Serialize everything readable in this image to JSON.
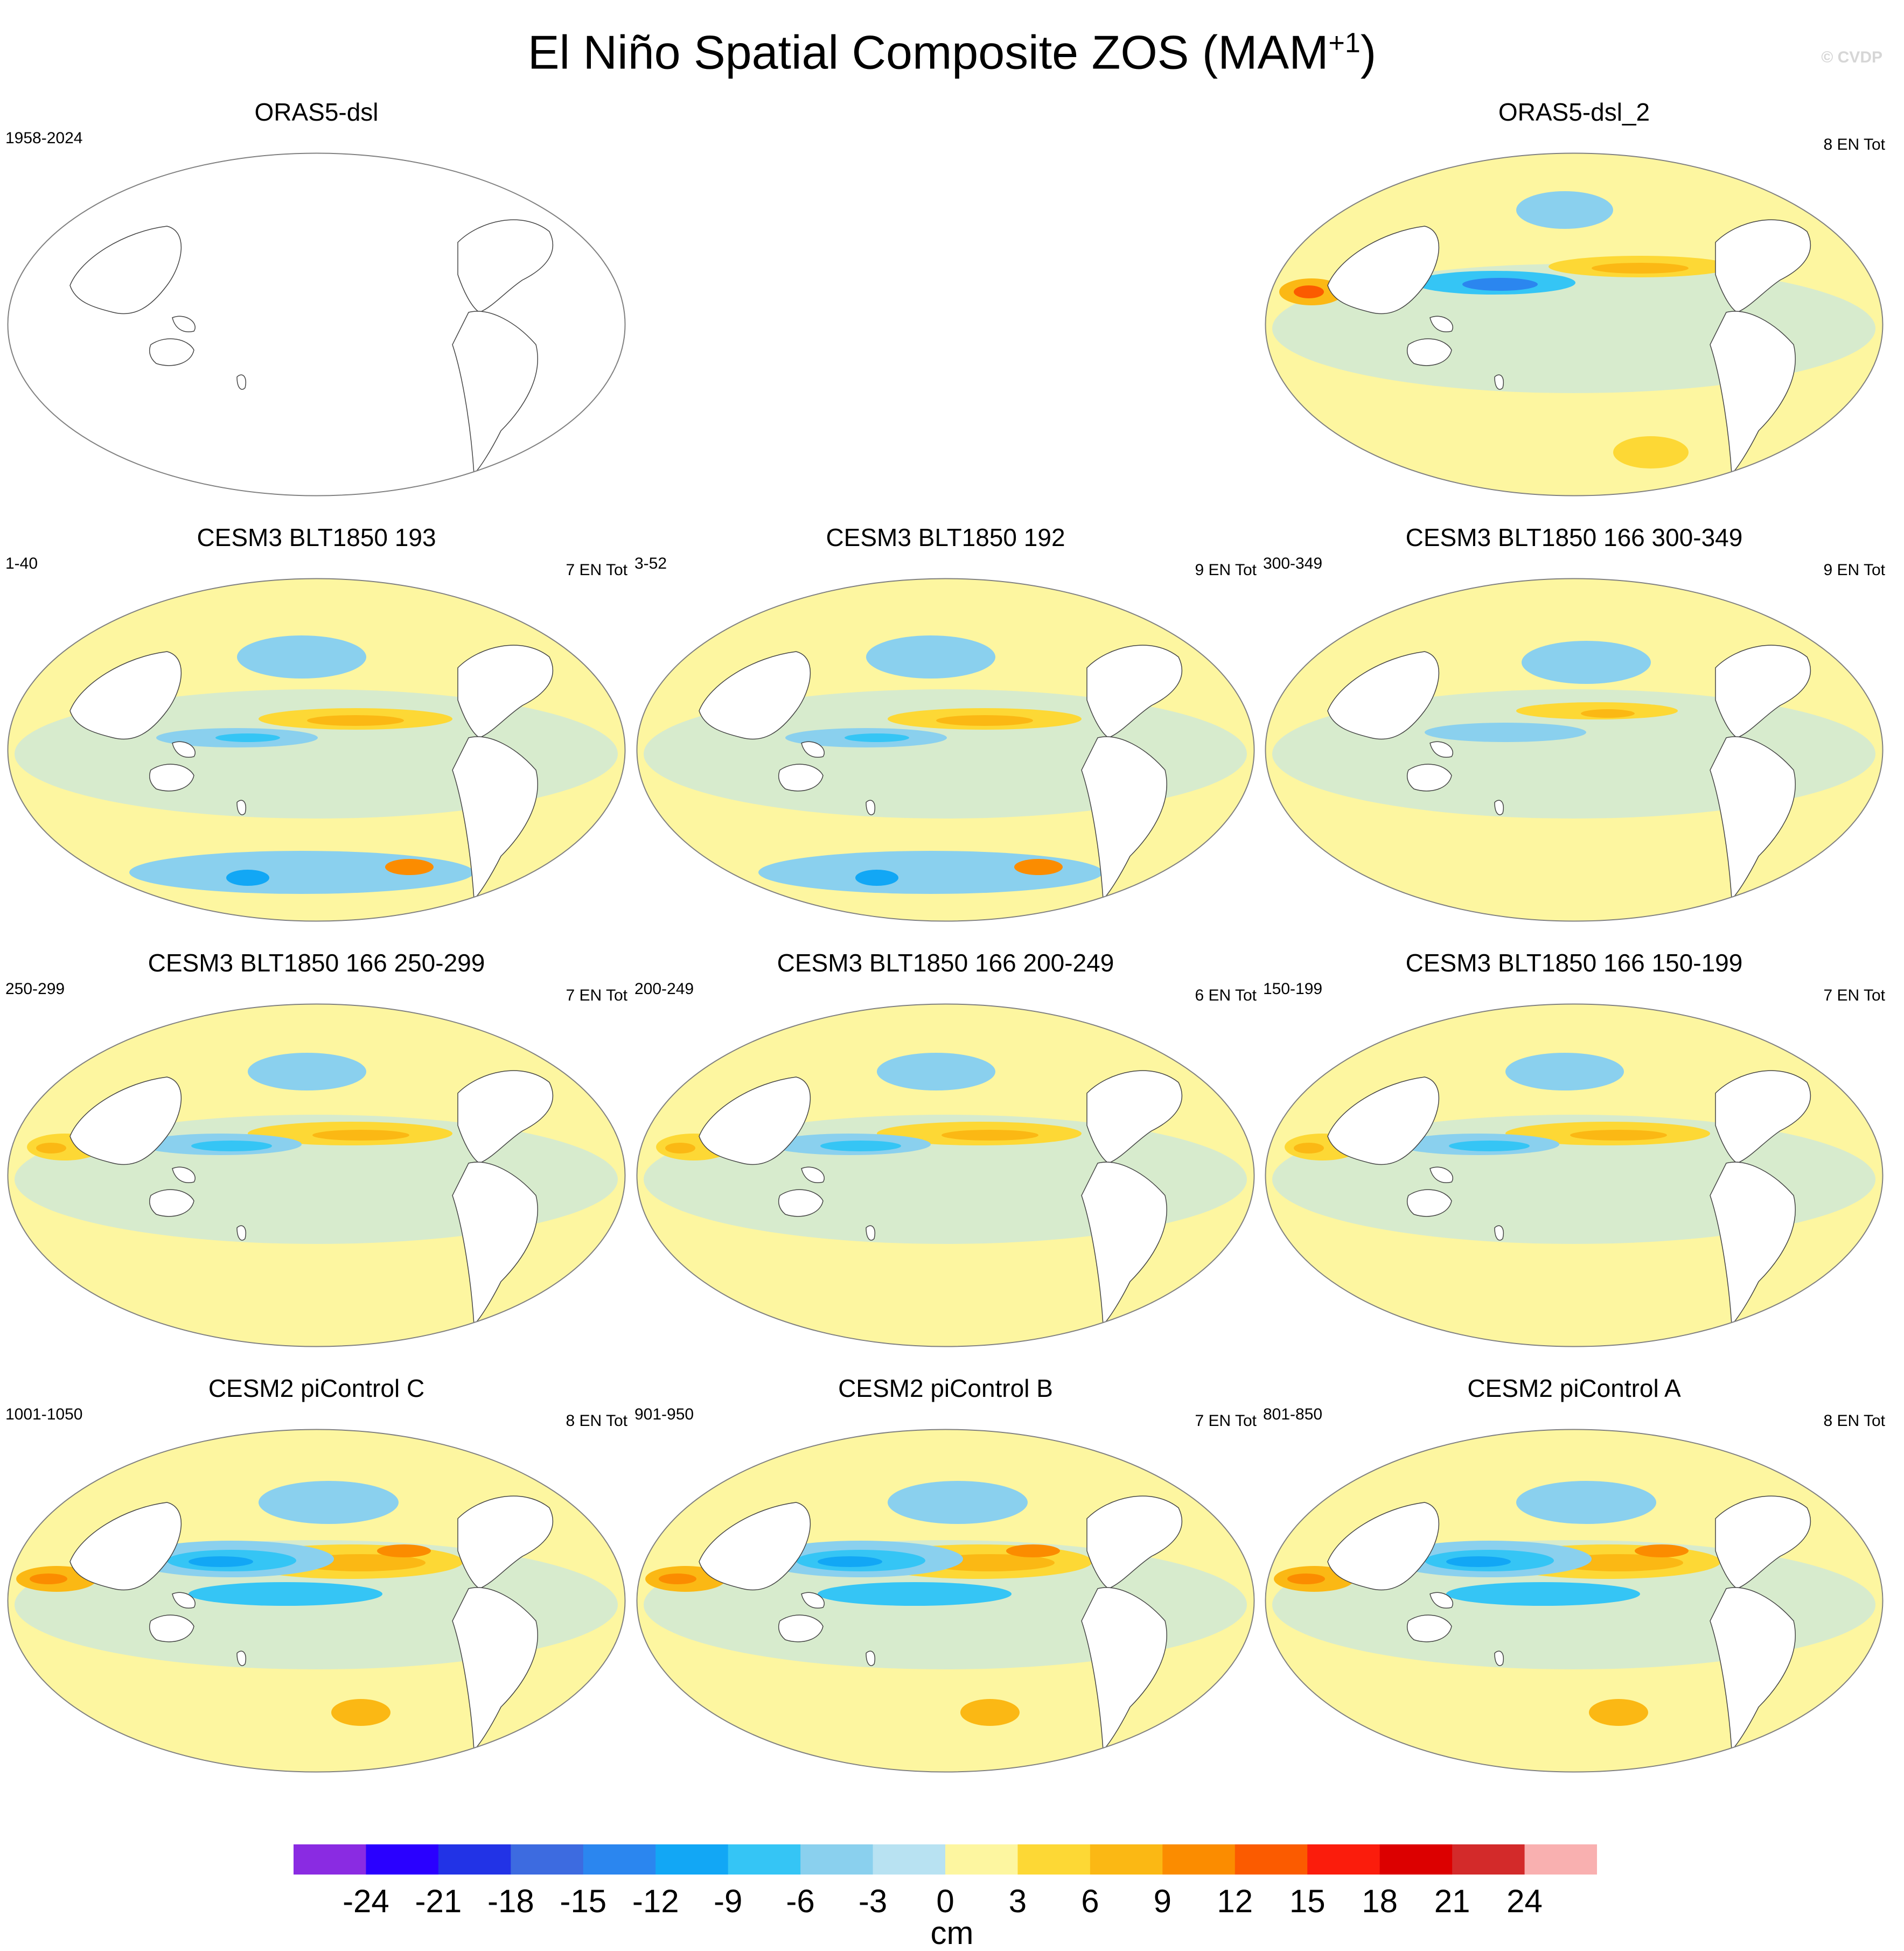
{
  "title": "El Niño Spatial Composite ZOS (MAM",
  "title_sup": "+1",
  "title_close": ")",
  "watermark": "© CVDP",
  "panels": [
    {
      "title": "ORAS5-dsl",
      "years": "1958-2024",
      "count": "",
      "style": "blank"
    },
    {
      "title": "ORAS5-dsl_2",
      "years": "",
      "count": "8 EN Tot",
      "style": "obs"
    },
    {
      "title": "CESM3 BLT1850 193",
      "years": "1-40",
      "count": "7 EN Tot",
      "style": "noisy"
    },
    {
      "title": "CESM3 BLT1850 192",
      "years": "3-52",
      "count": "9 EN Tot",
      "style": "noisy"
    },
    {
      "title": "CESM3 BLT1850 166 300-349",
      "years": "300-349",
      "count": "9 EN Tot",
      "style": "weak"
    },
    {
      "title": "CESM3 BLT1850 166 250-299",
      "years": "250-299",
      "count": "7 EN Tot",
      "style": "mid"
    },
    {
      "title": "CESM3 BLT1850 166 200-249",
      "years": "200-249",
      "count": "6 EN Tot",
      "style": "mid"
    },
    {
      "title": "CESM3 BLT1850 166 150-199",
      "years": "150-199",
      "count": "7 EN Tot",
      "style": "mid"
    },
    {
      "title": "CESM2 piControl C",
      "years": "1001-1050",
      "count": "8 EN Tot",
      "style": "strong"
    },
    {
      "title": "CESM2 piControl B",
      "years": "901-950",
      "count": "7 EN Tot",
      "style": "strong"
    },
    {
      "title": "CESM2 piControl A",
      "years": "801-850",
      "count": "8 EN Tot",
      "style": "strong"
    }
  ],
  "colorbar": {
    "colors": [
      "#8a2be2",
      "#2a00ff",
      "#2233e6",
      "#3d6be0",
      "#2b86ef",
      "#12a7f5",
      "#35c5f5",
      "#8ad0ee",
      "#b8e2f2",
      "#fdf6a0",
      "#fdd835",
      "#fbb814",
      "#fb8c00",
      "#fb5b00",
      "#fb1c0c",
      "#dc0000",
      "#d32a2a",
      "#f9b0b0"
    ],
    "ticks": [
      "-24",
      "-21",
      "-18",
      "-15",
      "-12",
      "-9",
      "-6",
      "-3",
      "0",
      "3",
      "6",
      "9",
      "12",
      "15",
      "18",
      "21",
      "24"
    ],
    "label": "cm"
  }
}
